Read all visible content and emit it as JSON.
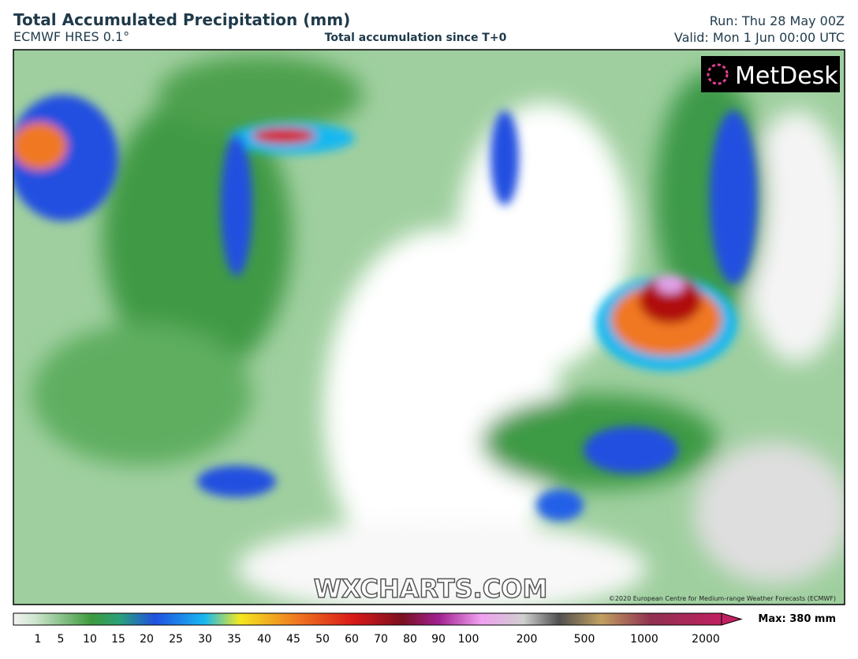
{
  "header": {
    "title": "Total Accumulated Precipitation (mm)",
    "model": "ECMWF HRES 0.1°",
    "subtitle": "Total accumulation since T+0",
    "run": "Run: Thu 28 May 00Z",
    "valid": "Valid: Mon 1 Jun 00:00 UTC"
  },
  "map": {
    "logo": "MetDesk",
    "watermark": "WXCHARTS.COM",
    "copyright": "©2020 European Centre for Medium-range Weather Forecasts (ECMWF)"
  },
  "colorbar": {
    "labels": [
      "1",
      "5",
      "10",
      "15",
      "20",
      "25",
      "30",
      "35",
      "40",
      "45",
      "50",
      "60",
      "70",
      "80",
      "90",
      "100",
      "200",
      "500",
      "1000",
      "2000"
    ],
    "max": "Max: 380 mm"
  }
}
